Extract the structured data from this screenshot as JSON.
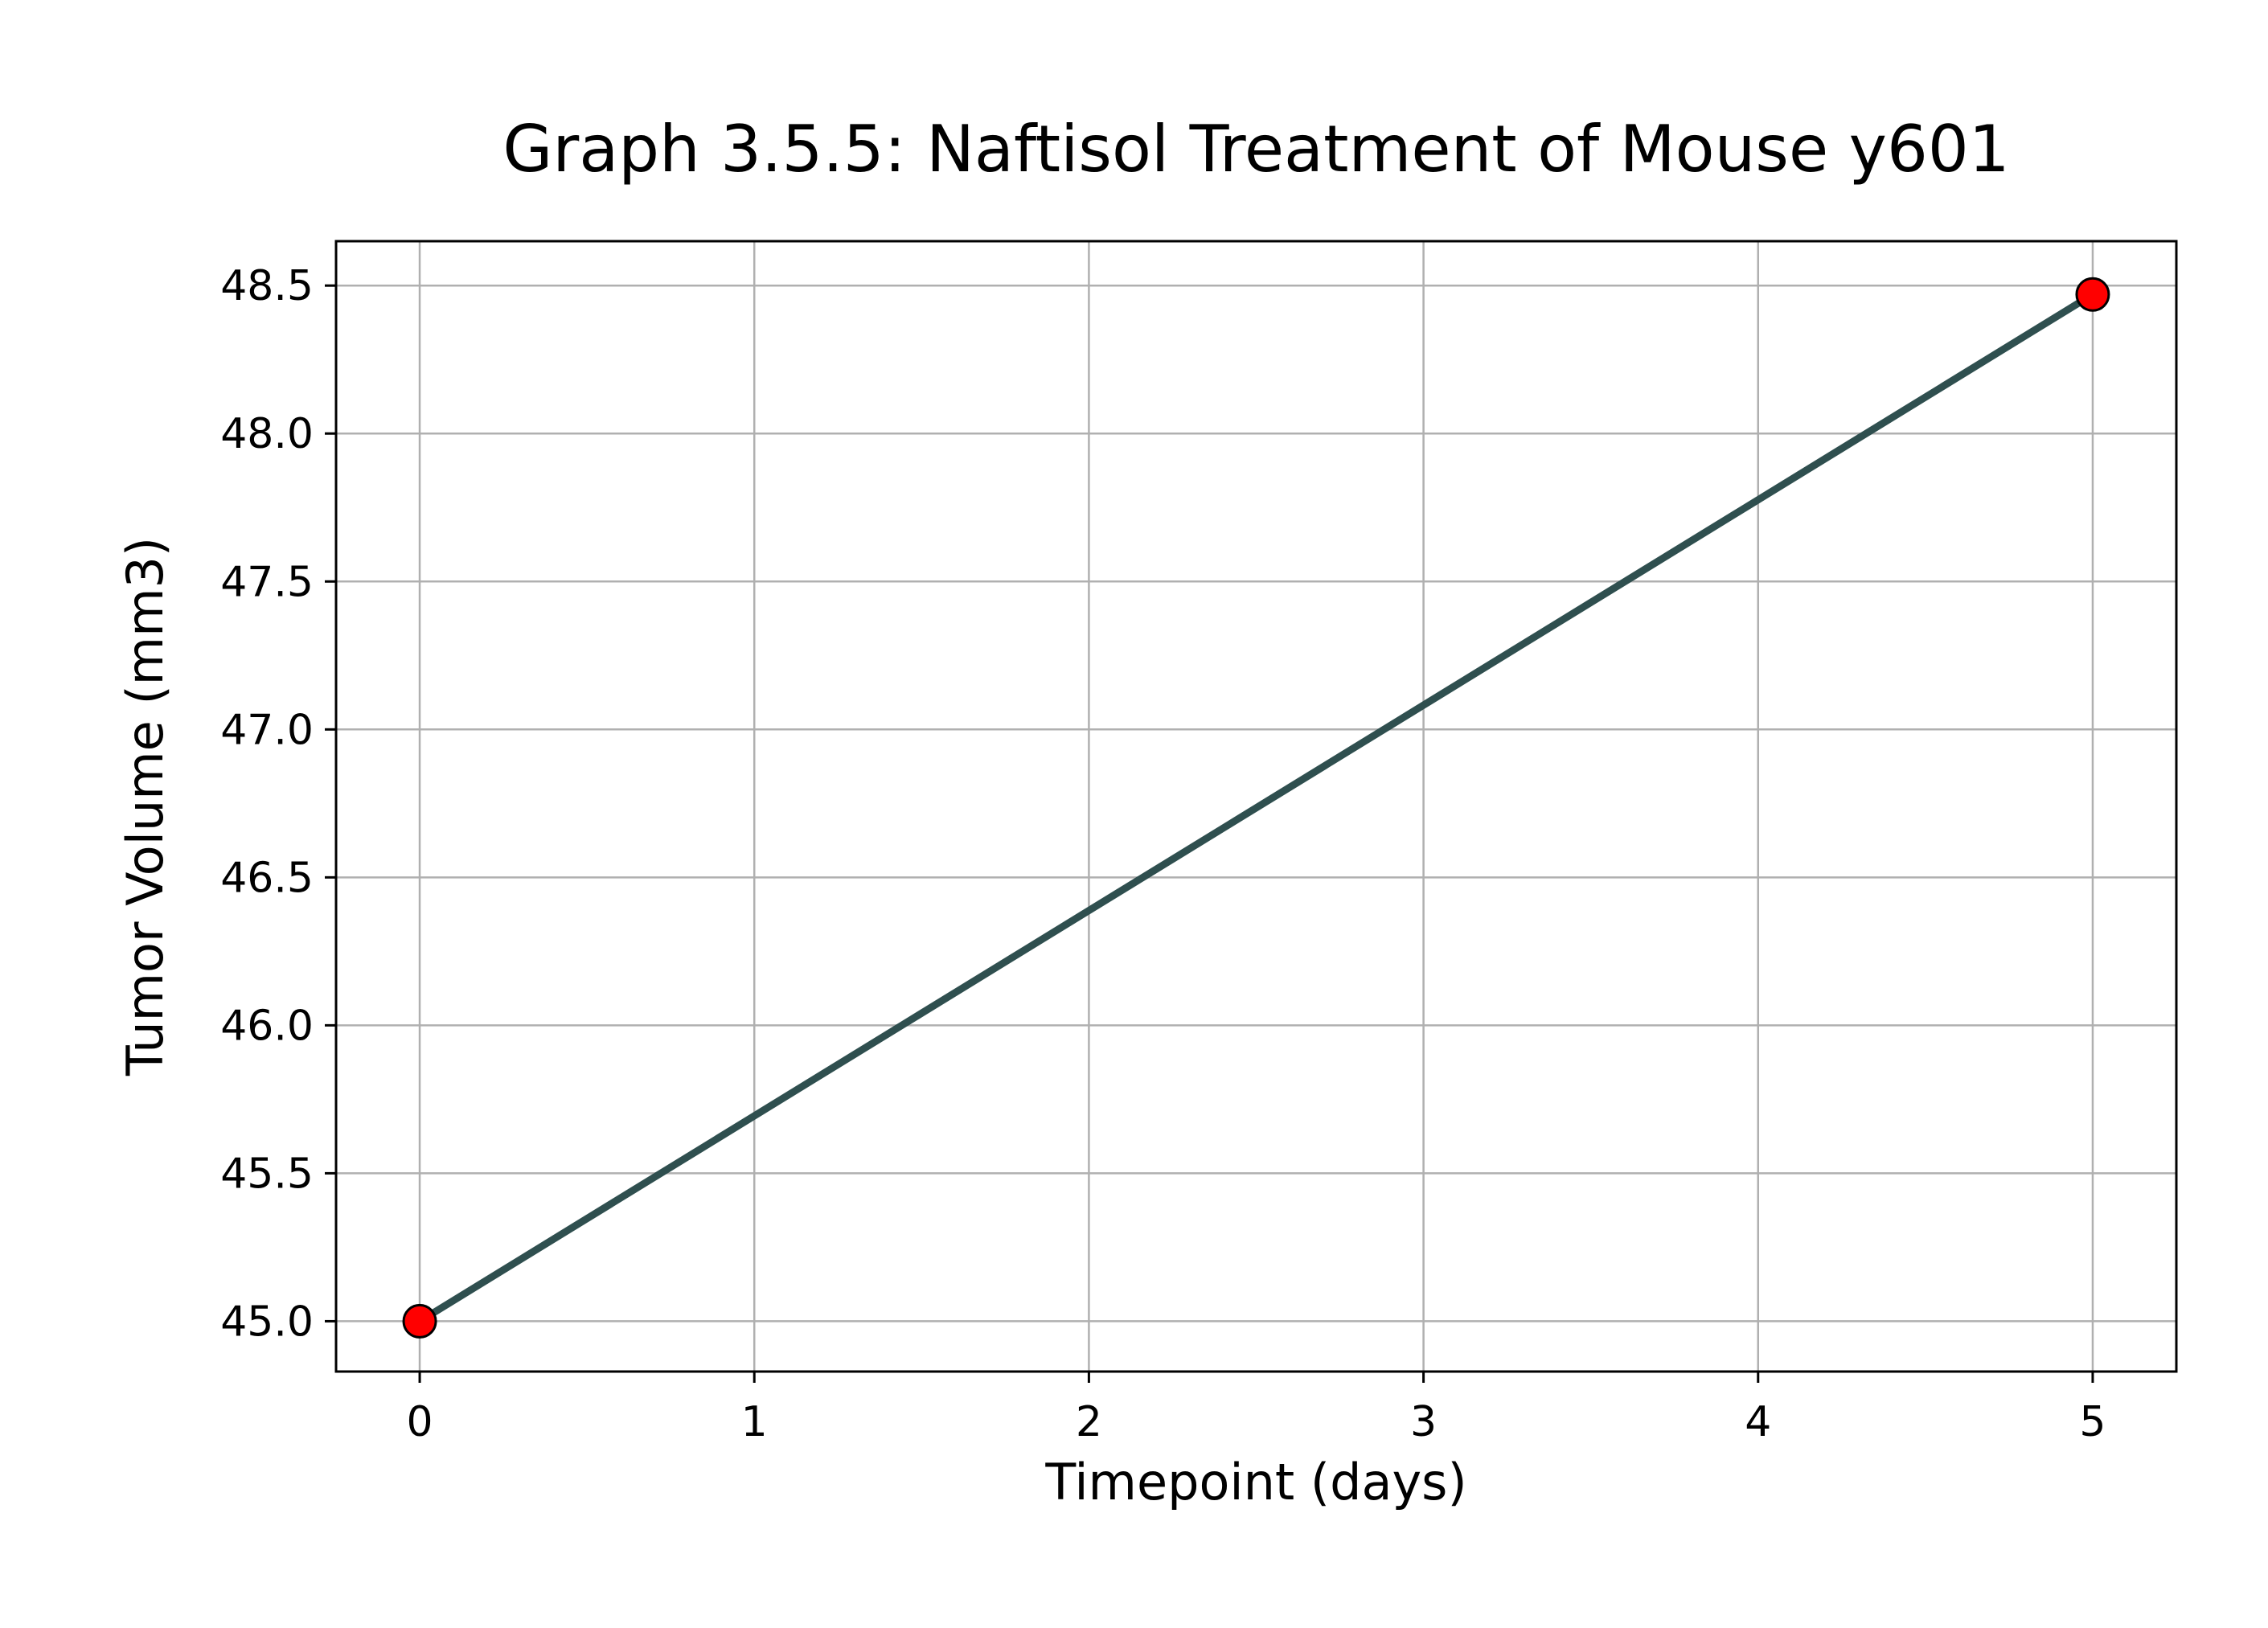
{
  "chart_data": {
    "type": "line",
    "title": "Graph 3.5.5: Naftisol Treatment of Mouse y601",
    "xlabel": "Timepoint (days)",
    "ylabel": "Tumor Volume (mm3)",
    "x": [
      0,
      5
    ],
    "series": [
      {
        "values": [
          45.0,
          48.47
        ],
        "line_color": "#2f4f4f",
        "marker_color": "#ff0000",
        "marker_edge_color": "#000000"
      }
    ],
    "xlim": [
      -0.25,
      5.25
    ],
    "ylim": [
      44.83,
      48.65
    ],
    "xticks": [
      0,
      1,
      2,
      3,
      4,
      5
    ],
    "xtick_labels": [
      "0",
      "1",
      "2",
      "3",
      "4",
      "5"
    ],
    "yticks": [
      45.0,
      45.5,
      46.0,
      46.5,
      47.0,
      47.5,
      48.0,
      48.5
    ],
    "ytick_labels": [
      "45.0",
      "45.5",
      "46.0",
      "46.5",
      "47.0",
      "47.5",
      "48.0",
      "48.5"
    ],
    "grid": true,
    "grid_color": "#b0b0b0"
  }
}
